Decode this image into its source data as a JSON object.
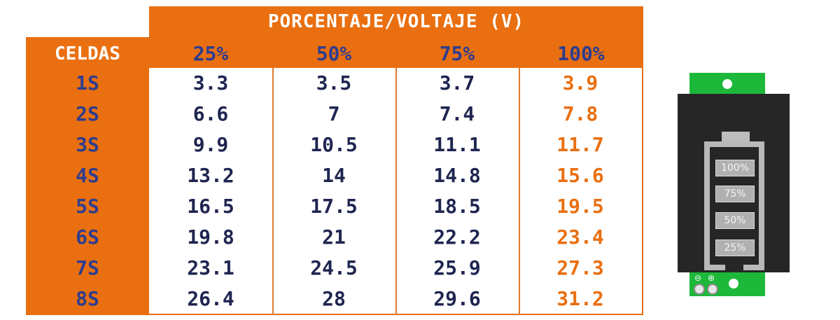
{
  "chart_data": {
    "type": "table",
    "title": "PORCENTAJE/VOLTAJE (V)",
    "row_header": "CELDAS",
    "columns": [
      "25%",
      "50%",
      "75%",
      "100%"
    ],
    "rows": [
      {
        "label": "1S",
        "values": [
          "3.3",
          "3.5",
          "3.7",
          "3.9"
        ]
      },
      {
        "label": "2S",
        "values": [
          "6.6",
          "7",
          "7.4",
          "7.8"
        ]
      },
      {
        "label": "3S",
        "values": [
          "9.9",
          "10.5",
          "11.1",
          "11.7"
        ]
      },
      {
        "label": "4S",
        "values": [
          "13.2",
          "14",
          "14.8",
          "15.6"
        ]
      },
      {
        "label": "5S",
        "values": [
          "16.5",
          "17.5",
          "18.5",
          "19.5"
        ]
      },
      {
        "label": "6S",
        "values": [
          "19.8",
          "21",
          "22.2",
          "23.4"
        ]
      },
      {
        "label": "7S",
        "values": [
          "23.1",
          "24.5",
          "25.9",
          "27.3"
        ]
      },
      {
        "label": "8S",
        "values": [
          "26.4",
          "28",
          "29.6",
          "31.2"
        ]
      }
    ],
    "highlight_column": "100%"
  },
  "device": {
    "segments": [
      "100%",
      "75%",
      "50%",
      "25%"
    ],
    "minus_symbol": "⊖",
    "plus_symbol": "⊕"
  },
  "colors": {
    "header_orange": "#e96f10",
    "label_blue": "#2e3d8f",
    "value_navy": "#1e2550",
    "highlight_orange": "#e96f10",
    "pcb_green": "#1db83a"
  }
}
